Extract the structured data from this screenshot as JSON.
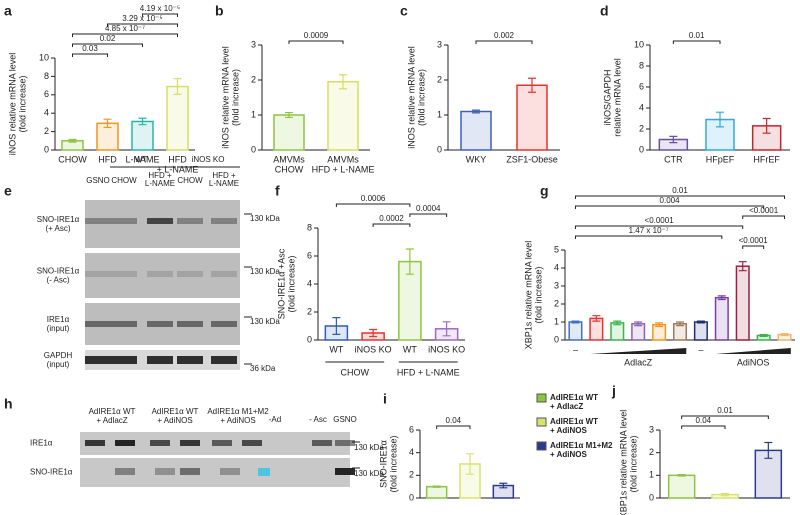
{
  "chart_data": [
    {
      "panel": "a",
      "type": "bar",
      "ylabel": [
        "iNOS relative mRNA level",
        "(fold increase)"
      ],
      "categories": [
        "CHOW",
        "HFD",
        "L-NAME",
        [
          "HFD",
          "+ L-NAME"
        ]
      ],
      "values": [
        1.0,
        2.9,
        3.1,
        6.9
      ],
      "errors": [
        0.15,
        0.45,
        0.35,
        0.85
      ],
      "colors": [
        "#8cc63f",
        "#f7941d",
        "#29b6a6",
        "#d7df5f"
      ],
      "ylim": [
        0,
        10
      ],
      "yticks": [
        0,
        2,
        4,
        6,
        8,
        10
      ],
      "comparisons": [
        {
          "label": "4.19 x 10⁻⁵",
          "pair": [
            2,
            3
          ]
        },
        {
          "label": "3.29 x 10⁻⁵",
          "pair": [
            1,
            3
          ]
        },
        {
          "label": "4.85 x 10⁻⁷",
          "pair": [
            0,
            3
          ]
        },
        {
          "label": "0.02",
          "pair": [
            0,
            2
          ]
        },
        {
          "label": "0.03",
          "pair": [
            0,
            1
          ]
        }
      ]
    },
    {
      "panel": "b",
      "type": "bar",
      "ylabel": [
        "iNOS relative mRNA level",
        "(fold increase)"
      ],
      "categories": [
        [
          "AMVMs",
          "CHOW"
        ],
        [
          "AMVMs",
          "HFD + L-NAME"
        ]
      ],
      "values": [
        1.0,
        1.95
      ],
      "errors": [
        0.07,
        0.2
      ],
      "colors": [
        "#8cc63f",
        "#d7df5f"
      ],
      "ylim": [
        0,
        3
      ],
      "yticks": [
        0,
        1,
        2,
        3
      ],
      "comparisons": [
        {
          "label": "0.0009",
          "pair": [
            0,
            1
          ]
        }
      ]
    },
    {
      "panel": "c",
      "type": "bar",
      "ylabel": [
        "iNOS relative mRNA level",
        "(fold increase)"
      ],
      "categories": [
        "WKY",
        "ZSF1-Obese"
      ],
      "values": [
        1.1,
        1.85
      ],
      "errors": [
        0.04,
        0.2
      ],
      "colors": [
        "#3f5fbf",
        "#e8322c"
      ],
      "ylim": [
        0,
        3
      ],
      "yticks": [
        0,
        1,
        2,
        3
      ],
      "comparisons": [
        {
          "label": "0.002",
          "pair": [
            0,
            1
          ]
        }
      ]
    },
    {
      "panel": "d",
      "type": "bar",
      "ylabel": [
        "iNOS/GAPDH",
        "relative mRNA level"
      ],
      "categories": [
        "CTR",
        "HFpEF",
        "HFrEF"
      ],
      "values": [
        1.0,
        2.9,
        2.3
      ],
      "errors": [
        0.3,
        0.7,
        0.7
      ],
      "colors": [
        "#6b4fa0",
        "#29abe2",
        "#c1272d"
      ],
      "ylim": [
        0,
        10
      ],
      "yticks": [
        0,
        2,
        4,
        6,
        8,
        10
      ],
      "comparisons": [
        {
          "label": "0.01",
          "pair": [
            0,
            1
          ]
        }
      ]
    },
    {
      "panel": "f",
      "type": "bar",
      "ylabel": [
        "SNO-IRE1α +Asc",
        "(fold increase)"
      ],
      "categories": [
        "WT",
        "iNOS KO",
        "WT",
        "iNOS KO"
      ],
      "groups": [
        {
          "label": "CHOW",
          "from": 0,
          "to": 1
        },
        {
          "label": "HFD + L-NAME",
          "from": 2,
          "to": 3
        }
      ],
      "values": [
        1.0,
        0.5,
        5.6,
        0.8
      ],
      "errors": [
        0.6,
        0.25,
        0.9,
        0.5
      ],
      "colors": [
        "#2e5cb8",
        "#e8322c",
        "#8cc63f",
        "#9b6bc0"
      ],
      "ylim": [
        0,
        8
      ],
      "yticks": [
        0,
        2,
        4,
        6,
        8
      ],
      "comparisons": [
        {
          "label": "0.0006",
          "pair": [
            0,
            2
          ]
        },
        {
          "label": "0.0004",
          "pair": [
            2,
            3
          ]
        },
        {
          "label": "0.0002",
          "pair": [
            1,
            2
          ]
        }
      ]
    },
    {
      "panel": "g",
      "type": "bar",
      "ylabel": [
        "XBP1s relative mRNA level",
        "(fold increase)"
      ],
      "categories": [
        "–",
        null,
        null,
        null,
        null,
        null,
        "–",
        null,
        null,
        null,
        null
      ],
      "groups": [
        {
          "label": "AdlacZ",
          "from": 1,
          "to": 5
        },
        {
          "label": "AdiNOS",
          "from": 7,
          "to": 10
        }
      ],
      "values": [
        1.0,
        1.2,
        0.95,
        0.9,
        0.85,
        0.9,
        1.0,
        2.35,
        4.1,
        0.25,
        0.3
      ],
      "errors": [
        0.05,
        0.15,
        0.1,
        0.1,
        0.1,
        0.1,
        0.05,
        0.1,
        0.25,
        0.05,
        0.05
      ],
      "colors": [
        "#3f6fd1",
        "#e8322c",
        "#39b54a",
        "#8e5fb5",
        "#f7941d",
        "#a0785a",
        "#1f2f6f",
        "#7a3fa0",
        "#9e1f3a",
        "#39b54a",
        "#f7b267"
      ],
      "ylim": [
        0,
        5
      ],
      "yticks": [
        0,
        1,
        2,
        3,
        4,
        5
      ],
      "comparisons": [
        {
          "label": "0.01",
          "pair": [
            0,
            10
          ]
        },
        {
          "label": "0.004",
          "pair": [
            0,
            9
          ]
        },
        {
          "label": "<0.0001",
          "pair": [
            8,
            10
          ]
        },
        {
          "label": "<0.0001",
          "pair": [
            0,
            8
          ]
        },
        {
          "label": "1.47 x 10⁻⁷",
          "pair": [
            0,
            7
          ]
        },
        {
          "label": "<0.0001",
          "pair": [
            8,
            9
          ]
        }
      ]
    },
    {
      "panel": "i",
      "type": "bar",
      "ylabel": [
        "SNO-IRE1α",
        "(fold increase)"
      ],
      "categories": [
        null,
        null,
        null
      ],
      "values": [
        1.0,
        3.0,
        1.1
      ],
      "errors": [
        0.05,
        0.9,
        0.2
      ],
      "colors": [
        "#8cc63f",
        "#d9e36a",
        "#2b3a8f"
      ],
      "ylim": [
        0,
        6
      ],
      "yticks": [
        0,
        2,
        4,
        6
      ],
      "comparisons": [
        {
          "label": "0.04",
          "pair": [
            0,
            1
          ]
        }
      ]
    },
    {
      "panel": "j",
      "type": "bar",
      "ylabel": [
        "XBP1s relative mRNA level",
        "(fold increase)"
      ],
      "categories": [
        null,
        null,
        null
      ],
      "values": [
        1.0,
        0.15,
        2.1
      ],
      "errors": [
        0.03,
        0.05,
        0.35
      ],
      "colors": [
        "#8cc63f",
        "#d9e36a",
        "#2b3a8f"
      ],
      "ylim": [
        0,
        3
      ],
      "yticks": [
        0,
        1,
        2,
        3
      ],
      "comparisons": [
        {
          "label": "0.01",
          "pair": [
            0,
            2
          ]
        },
        {
          "label": "0.04",
          "pair": [
            0,
            1
          ]
        }
      ]
    }
  ],
  "legend": [
    {
      "label": [
        "AdIRE1α WT",
        "+ AdlacZ"
      ],
      "color": "#8cc63f"
    },
    {
      "label": [
        "AdIRE1α WT",
        "+ AdiNOS"
      ],
      "color": "#d9e36a"
    },
    {
      "label": [
        "AdIRE1α M1+M2",
        "+ AdiNOS"
      ],
      "color": "#2b3a8f"
    }
  ],
  "blot_e": {
    "panel": "e",
    "lanes": [
      "GSNO",
      "CHOW",
      [
        "HFD +",
        "L-NAME"
      ],
      "CHOW",
      [
        "HFD +",
        "L-NAME"
      ]
    ],
    "strains": [
      "WT",
      "iNOS KO"
    ],
    "rows": [
      [
        "SNO-IRE1α",
        "(+ Asc)"
      ],
      [
        "SNO-IRE1α",
        "(- Asc)"
      ],
      [
        "IRE1α",
        "(input)"
      ],
      [
        "GAPDH",
        "(input)"
      ]
    ],
    "sizes": [
      "130 kDa",
      "130 kDa",
      "130 kDa",
      "36 kDa"
    ]
  },
  "blot_h": {
    "panel": "h",
    "lanes": [
      [
        "AdIRE1α WT",
        "+ AdlacZ"
      ],
      [
        "AdIRE1α WT",
        "+ AdiNOS"
      ],
      [
        "AdIRE1α M1+M2",
        "+ AdiNOS"
      ],
      "-Ad",
      "- Asc",
      "GSNO"
    ],
    "rows": [
      "IRE1α",
      "SNO-IRE1α"
    ],
    "sizes": [
      "130 kDa",
      "130 kDa"
    ]
  }
}
